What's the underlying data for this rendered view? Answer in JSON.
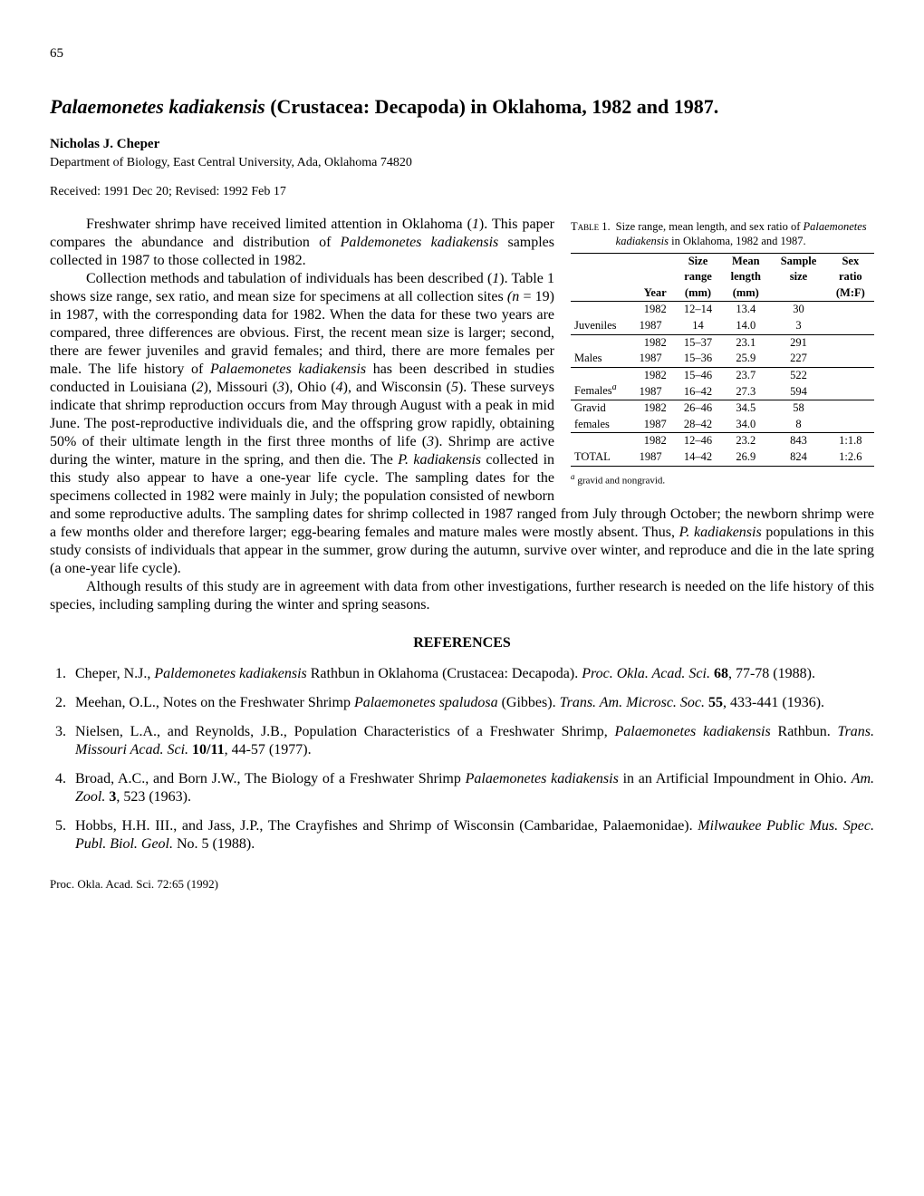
{
  "page_number": "65",
  "title_prefix_italic": "Palaemonetes kadiakensis",
  "title_suffix": " (Crustacea: Decapoda) in Oklahoma, 1982 and 1987.",
  "author": "Nicholas J. Cheper",
  "affiliation": "Department of Biology, East Central University, Ada, Oklahoma 74820",
  "received": "Received: 1991 Dec 20; Revised: 1992 Feb 17",
  "table": {
    "label": "Table 1.",
    "caption_pre": "Size range, mean length, and sex ratio of ",
    "caption_italic": "Palaemonetes kadiakensis",
    "caption_post": " in Oklahoma, 1982 and 1987.",
    "headers": {
      "c1": "",
      "c2": "Year",
      "c3a": "Size",
      "c3b": "range",
      "c3c": "(mm)",
      "c4a": "Mean",
      "c4b": "length",
      "c4c": "(mm)",
      "c5a": "Sample",
      "c5b": "size",
      "c6a": "Sex",
      "c6b": "ratio",
      "c6c": "(M:F)"
    },
    "rows": [
      {
        "label": "Juveniles",
        "y1": "1982",
        "r1": "12–14",
        "m1": "13.4",
        "s1": "30",
        "x1": "",
        "y2": "1987",
        "r2": "14",
        "m2": "14.0",
        "s2": "3",
        "x2": ""
      },
      {
        "label": "Males",
        "y1": "1982",
        "r1": "15–37",
        "m1": "23.1",
        "s1": "291",
        "x1": "",
        "y2": "1987",
        "r2": "15–36",
        "m2": "25.9",
        "s2": "227",
        "x2": ""
      },
      {
        "label": "Females",
        "sup": "a",
        "y1": "1982",
        "r1": "15–46",
        "m1": "23.7",
        "s1": "522",
        "x1": "",
        "y2": "1987",
        "r2": "16–42",
        "m2": "27.3",
        "s2": "594",
        "x2": ""
      },
      {
        "label2a": "Gravid",
        "label2b": "females",
        "y1": "1982",
        "r1": "26–46",
        "m1": "34.5",
        "s1": "58",
        "x1": "",
        "y2": "1987",
        "r2": "28–42",
        "m2": "34.0",
        "s2": "8",
        "x2": ""
      },
      {
        "label": "TOTAL",
        "y1": "1982",
        "r1": "12–46",
        "m1": "23.2",
        "s1": "843",
        "x1": "1:1.8",
        "y2": "1987",
        "r2": "14–42",
        "m2": "26.9",
        "s2": "824",
        "x2": "1:2.6"
      }
    ],
    "footnote_sup": "a",
    "footnote": " gravid and nongravid."
  },
  "paragraphs": {
    "p1a": "Freshwater shrimp have received limited attention in Oklahoma (",
    "p1b": "1",
    "p1c": "). This paper compares the abundance and distribution of ",
    "p1d": "Paldemonetes kadiakensis",
    "p1e": " samples collected in 1987 to those collected in 1982.",
    "p2a": "Collection methods and tabulation of individuals has been described (",
    "p2b": "1",
    "p2c": "). Table 1 shows size range, sex ratio, and mean size for specimens at all collection sites ",
    "p2d": "(n",
    "p2e": " = 19) in 1987, with the corresponding data for 1982. When the data for these two years are compared, three differences are obvious. First, the recent mean size is larger; second, there are fewer juveniles and gravid females; and third, there are more females per male. The life history of ",
    "p2f": "Palaemonetes kadiakensis",
    "p2g": " has been described in studies conducted in Louisiana (",
    "p2h": "2",
    "p2i": "), Missouri (",
    "p2j": "3",
    "p2k": "), Ohio (",
    "p2l": "4",
    "p2m": "), and Wisconsin (",
    "p2n": "5",
    "p2o": "). These surveys indicate that shrimp reproduction occurs from May through August with a peak in mid June. The post-reproductive individuals die, and the offspring grow rapidly, obtaining 50% of their ultimate length in the first three months of life (",
    "p2p": "3",
    "p2q": "). Shrimp are active during the winter, mature in the spring, and then die. The ",
    "p2r": "P. kadiakensis",
    "p2s": " collected in this study also appear to have a one-year life cycle. The sampling dates for the specimens collected in 1982 were mainly in July; the population consisted of newborn and some reproductive adults. The sampling dates for shrimp collected in 1987 ranged from July through October; the newborn shrimp were a few months older and therefore larger; egg-bearing females and mature males were mostly absent. Thus, ",
    "p2t": "P. kadiakensis",
    "p2u": " populations in this study consists of individuals that appear in the summer, grow during the autumn, survive over winter, and reproduce and die in the late spring (a one-year life cycle).",
    "p3": "Although results of this study are in agreement with data from other investigations, further research is needed on the life history of this species, including sampling during the winter and spring seasons."
  },
  "references_heading": "REFERENCES",
  "references": [
    {
      "a": "Cheper, N.J., ",
      "i1": "Paldemonetes kadiakensis",
      "b": " Rathbun in Oklahoma (Crustacea: Decapoda). ",
      "i2": "Proc. Okla. Acad. Sci.",
      "c": " ",
      "vol": "68",
      "d": ", 77-78 (1988)."
    },
    {
      "a": "Meehan, O.L., Notes on the Freshwater Shrimp ",
      "i1": "Palaemonetes spaludosa",
      "b": " (Gibbes). ",
      "i2": "Trans. Am. Microsc. Soc.",
      "c": " ",
      "vol": "55",
      "d": ", 433-441 (1936)."
    },
    {
      "a": "Nielsen, L.A., and Reynolds, J.B., Population Characteristics of a Freshwater Shrimp, ",
      "i1": "Palaemonetes kadiakensis",
      "b": " Rathbun. ",
      "i2": "Trans. Missouri Acad. Sci.",
      "c": " ",
      "vol": "10/11",
      "d": ", 44-57 (1977)."
    },
    {
      "a": "Broad, A.C., and Born J.W., The Biology of a Freshwater Shrimp ",
      "i1": "Palaemonetes kadiakensis",
      "b": " in an Artificial Impoundment in Ohio. ",
      "i2": "Am. Zool.",
      "c": " ",
      "vol": "3",
      "d": ", 523 (1963)."
    },
    {
      "a": "Hobbs, H.H. III., and Jass, J.P., The Crayfishes and Shrimp of Wisconsin (Cambaridae, Palaemonidae). ",
      "i1": "",
      "b": "",
      "i2": "Milwaukee Public Mus. Spec. Publ. Biol. Geol.",
      "c": " No. 5 (1988).",
      "vol": "",
      "d": ""
    }
  ],
  "footer": "Proc. Okla. Acad. Sci. 72:65 (1992)"
}
